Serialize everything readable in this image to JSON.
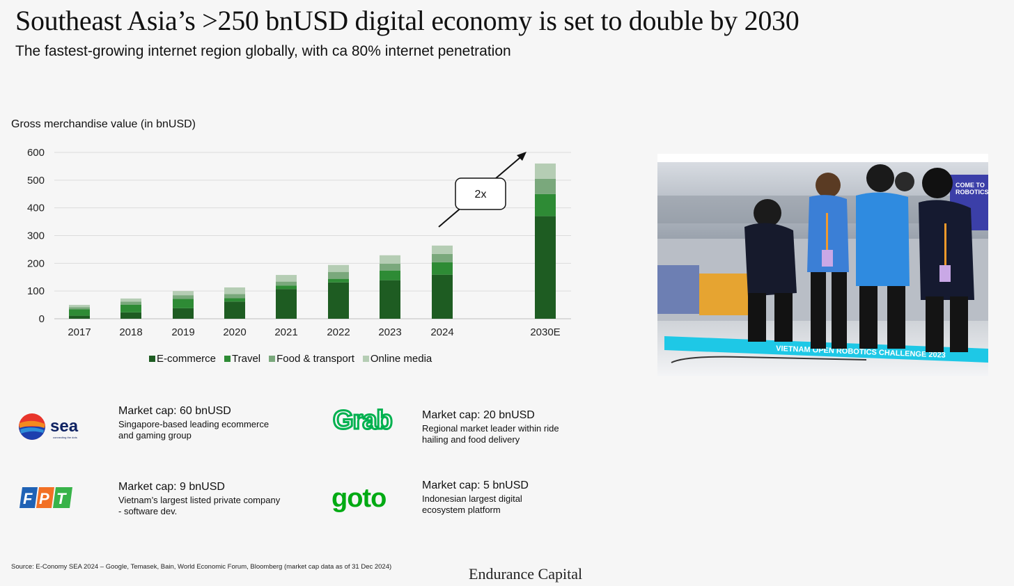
{
  "header": {
    "title": "Southeast Asia’s >250 bnUSD digital economy is set to double by 2030",
    "subtitle": "The fastest-growing internet region globally, with ca 80% internet penetration"
  },
  "chart_data": {
    "type": "bar",
    "stacked": true,
    "ylabel": "Gross merchandise value (in bnUSD)",
    "xlabel": "",
    "ylim": [
      0,
      600
    ],
    "yticks": [
      "0",
      "100",
      "200",
      "300",
      "400",
      "500",
      "600"
    ],
    "grid": true,
    "legend_position": "bottom",
    "categories": [
      "2017",
      "2018",
      "2019",
      "2020",
      "2021",
      "2022",
      "2023",
      "2024",
      "2030E"
    ],
    "series": [
      {
        "name": "E-commerce",
        "color": "#1e5c22",
        "values": [
          11,
          23,
          38,
          62,
          107,
          131,
          139,
          159,
          370
        ]
      },
      {
        "name": "Travel",
        "color": "#2e8b35",
        "values": [
          23,
          28,
          34,
          12,
          13,
          13,
          35,
          45,
          80
        ]
      },
      {
        "name": "Food & transport",
        "color": "#7aa87c",
        "values": [
          8,
          11,
          13,
          15,
          14,
          25,
          25,
          30,
          55
        ]
      },
      {
        "name": "Online media",
        "color": "#b5cdb4",
        "values": [
          8,
          11,
          15,
          24,
          24,
          25,
          30,
          30,
          55
        ]
      }
    ],
    "annotations": [
      {
        "text": "2x"
      }
    ]
  },
  "companies": [
    {
      "logo": "sea-logo",
      "logo_text": "sea",
      "logo_tagline": "connecting the dots",
      "cap": "Market cap: 60 bnUSD",
      "desc": [
        "Singapore-based leading ecommerce",
        "and gaming group"
      ]
    },
    {
      "logo": "grab-logo",
      "logo_text": "Grab",
      "cap": "Market cap: 20 bnUSD",
      "desc": [
        "Regional market leader within ride",
        "hailing and food delivery"
      ]
    },
    {
      "logo": "fpt-logo",
      "logo_text": [
        "F",
        "P",
        "T"
      ],
      "cap": "Market cap: 9 bnUSD",
      "desc": [
        "Vietnam’s largest listed private company",
        "- software dev."
      ]
    },
    {
      "logo": "goto-logo",
      "logo_text": "goto",
      "cap": "Market cap: 5 bnUSD",
      "desc": [
        "Indonesian largest digital",
        "ecosystem platform"
      ]
    }
  ],
  "photo": {
    "banner_text": "VIETNAM OPEN ROBOTICS CHALLENGE 2023",
    "sign_text": [
      "COME TO",
      "ROBOTICS"
    ]
  },
  "colors": {
    "grab": "#00b14f",
    "goto": "#00aa13",
    "fpt_blue": "#1f62b5",
    "fpt_orange": "#f27024",
    "fpt_green": "#38b349"
  },
  "footer": {
    "source": "Source: E-Conomy SEA 2024 – Google, Temasek, Bain, World Economic Forum, Bloomberg (market cap data as of 31 Dec 2024)",
    "brand": "Endurance Capital"
  }
}
